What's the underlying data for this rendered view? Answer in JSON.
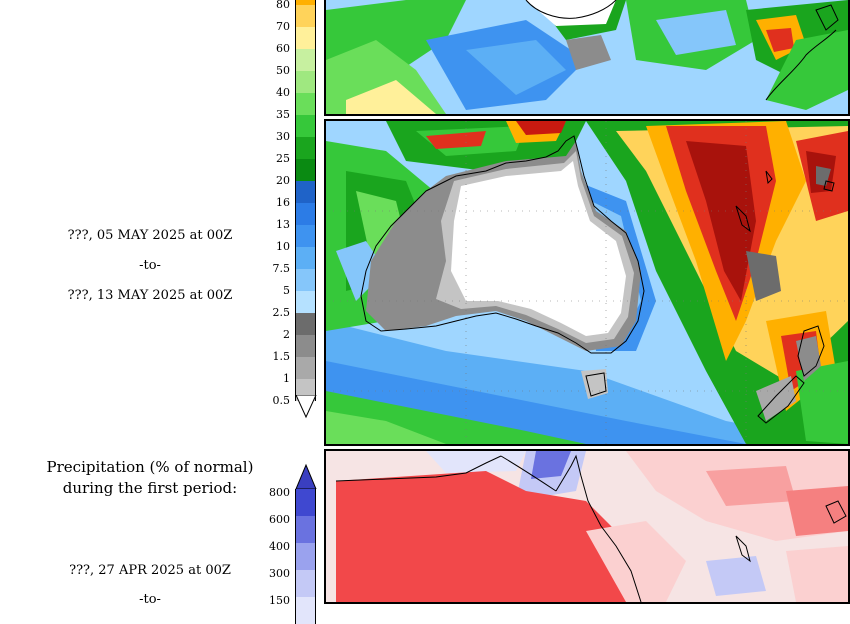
{
  "period_current": {
    "line1": "???, 05 MAY 2025 at 00Z",
    "line2": "-to-",
    "line3": "???, 13 MAY 2025 at 00Z"
  },
  "anomaly_section": {
    "title_line1": "Precipitation (% of normal)",
    "title_line2": "during the first period:",
    "date_line1": "???, 27 APR 2025 at 00Z",
    "date_line2": "-to-"
  },
  "precip_scale": {
    "labels": [
      "80",
      "70",
      "60",
      "50",
      "40",
      "35",
      "30",
      "25",
      "20",
      "16",
      "13",
      "10",
      "7.5",
      "5",
      "2.5",
      "2",
      "1.5",
      "1",
      "0.5"
    ],
    "colors": [
      "#ffb000",
      "#ffd35a",
      "#fff09a",
      "#c7f0a0",
      "#9fe880",
      "#6ade5a",
      "#36c83a",
      "#1aa51e",
      "#0a8a12",
      "#1f63c8",
      "#2c7ce6",
      "#3e93f0",
      "#5caff5",
      "#85c6fa",
      "#b5e1ff",
      "#6c6c6c",
      "#8c8c8c",
      "#a9a9a9",
      "#c4c4c4"
    ]
  },
  "anomaly_scale": {
    "labels": [
      "800",
      "600",
      "400",
      "300",
      "150"
    ],
    "colors": [
      "#3f48d0",
      "#6a72e0",
      "#9aa2ee",
      "#c4c9f6",
      "#e2e5fb"
    ]
  }
}
